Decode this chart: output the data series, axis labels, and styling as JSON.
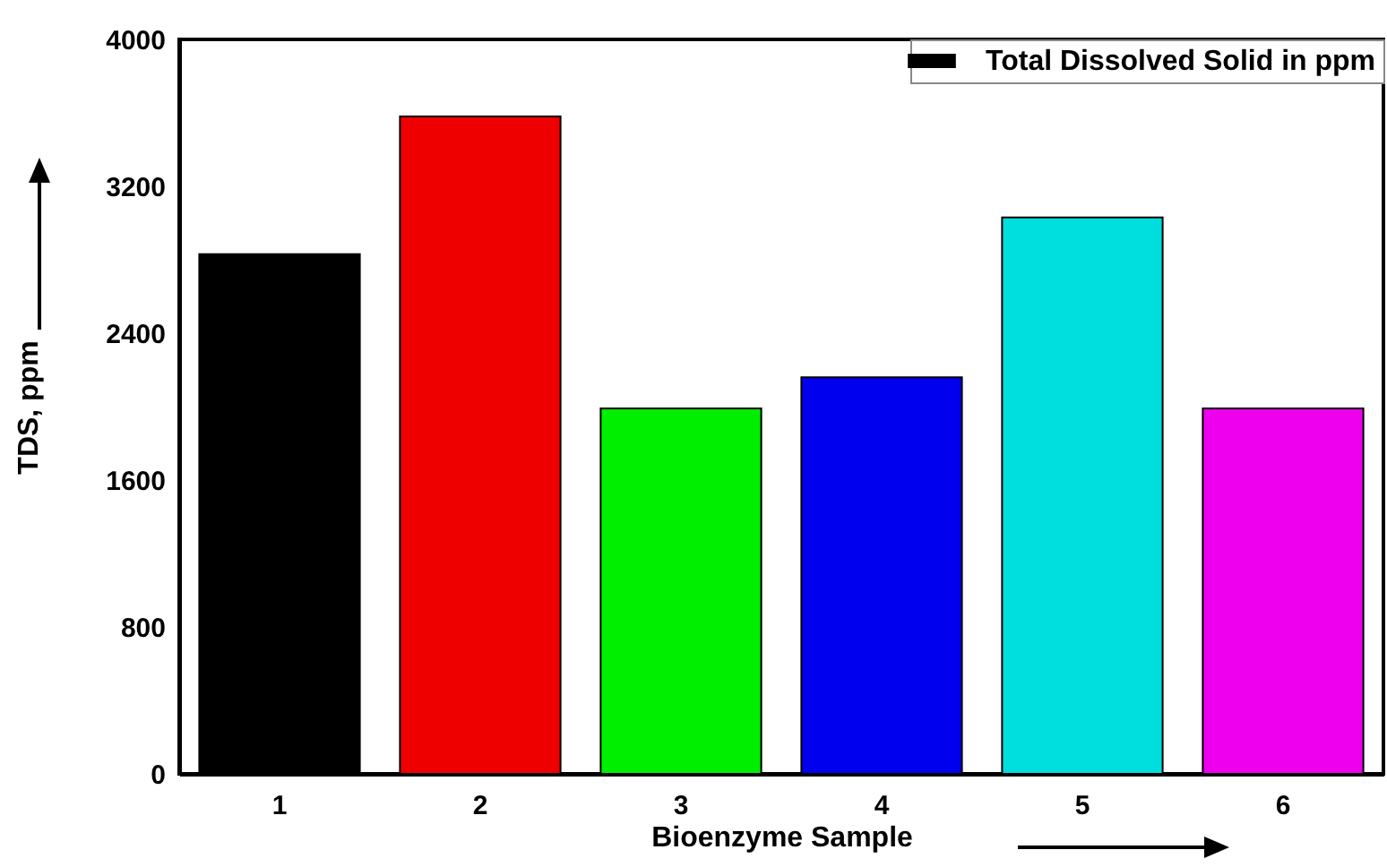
{
  "chart_data": {
    "type": "bar",
    "xlabel": "Bioenzyme Sample",
    "ylabel": "TDS, ppm",
    "categories": [
      "1",
      "2",
      "3",
      "4",
      "5",
      "6"
    ],
    "series": [
      {
        "name": "Total Dissolved Solid in ppm",
        "color": "#000000",
        "colors": [
          "#000000",
          "#ee0000",
          "#00ee00",
          "#0000ee",
          "#00dddd",
          "#ee00ee"
        ],
        "values": [
          2830,
          3580,
          1990,
          2160,
          3030,
          1990
        ]
      }
    ],
    "ylim": [
      0,
      4000
    ],
    "yticks": [
      0,
      800,
      1600,
      2400,
      3200,
      4000
    ],
    "legend": "top right"
  }
}
